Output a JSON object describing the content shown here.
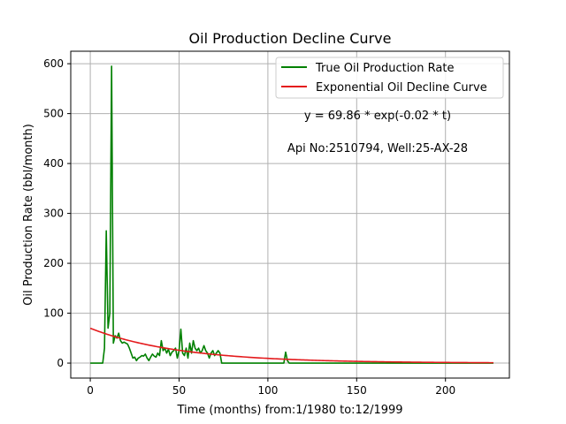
{
  "chart_data": {
    "type": "line",
    "title": "Oil Production Decline Curve",
    "xlabel": "Time (months) from:1/1980 to:12/1999",
    "ylabel": "Oil Production Rate (bbl/month)",
    "xlim": [
      -11,
      236
    ],
    "ylim": [
      -30,
      625
    ],
    "xticks": [
      0,
      50,
      100,
      150,
      200
    ],
    "yticks": [
      0,
      100,
      200,
      300,
      400,
      500,
      600
    ],
    "grid": true,
    "legend_position": "top-right",
    "annotations": [
      "y = 69.86 * exp(-0.02 * t)",
      "Api No:2510794, Well:25-AX-28"
    ],
    "series": [
      {
        "name": "True Oil Production Rate",
        "color": "#008000",
        "x": [
          0,
          7,
          8,
          9,
          10,
          11,
          12,
          13,
          14,
          15,
          16,
          17,
          18,
          19,
          20,
          21,
          22,
          23,
          24,
          25,
          26,
          27,
          28,
          29,
          30,
          31,
          32,
          33,
          34,
          35,
          36,
          37,
          38,
          39,
          40,
          41,
          42,
          43,
          44,
          45,
          46,
          47,
          48,
          49,
          50,
          51,
          52,
          53,
          54,
          55,
          56,
          57,
          58,
          59,
          60,
          61,
          62,
          63,
          64,
          65,
          66,
          67,
          68,
          69,
          70,
          71,
          72,
          73,
          74,
          75,
          76,
          77,
          80,
          90,
          100,
          109,
          110,
          111,
          112,
          120,
          150,
          200,
          227
        ],
        "y": [
          0,
          0,
          30,
          265,
          70,
          100,
          595,
          40,
          55,
          50,
          60,
          45,
          40,
          42,
          40,
          38,
          30,
          20,
          10,
          12,
          5,
          10,
          12,
          15,
          14,
          18,
          10,
          5,
          12,
          18,
          14,
          12,
          20,
          15,
          45,
          25,
          30,
          20,
          28,
          15,
          22,
          25,
          30,
          10,
          25,
          68,
          20,
          15,
          30,
          10,
          40,
          20,
          45,
          30,
          25,
          30,
          20,
          25,
          35,
          25,
          20,
          10,
          20,
          25,
          15,
          20,
          25,
          20,
          0,
          0,
          0,
          0,
          0,
          0,
          0,
          0,
          22,
          5,
          0,
          0,
          0,
          0,
          0
        ]
      },
      {
        "name": "Exponential Oil Decline Curve",
        "color": "#e41a1c",
        "model": {
          "a": 69.86,
          "b": -0.02
        },
        "x_range": [
          0,
          227
        ]
      }
    ]
  }
}
